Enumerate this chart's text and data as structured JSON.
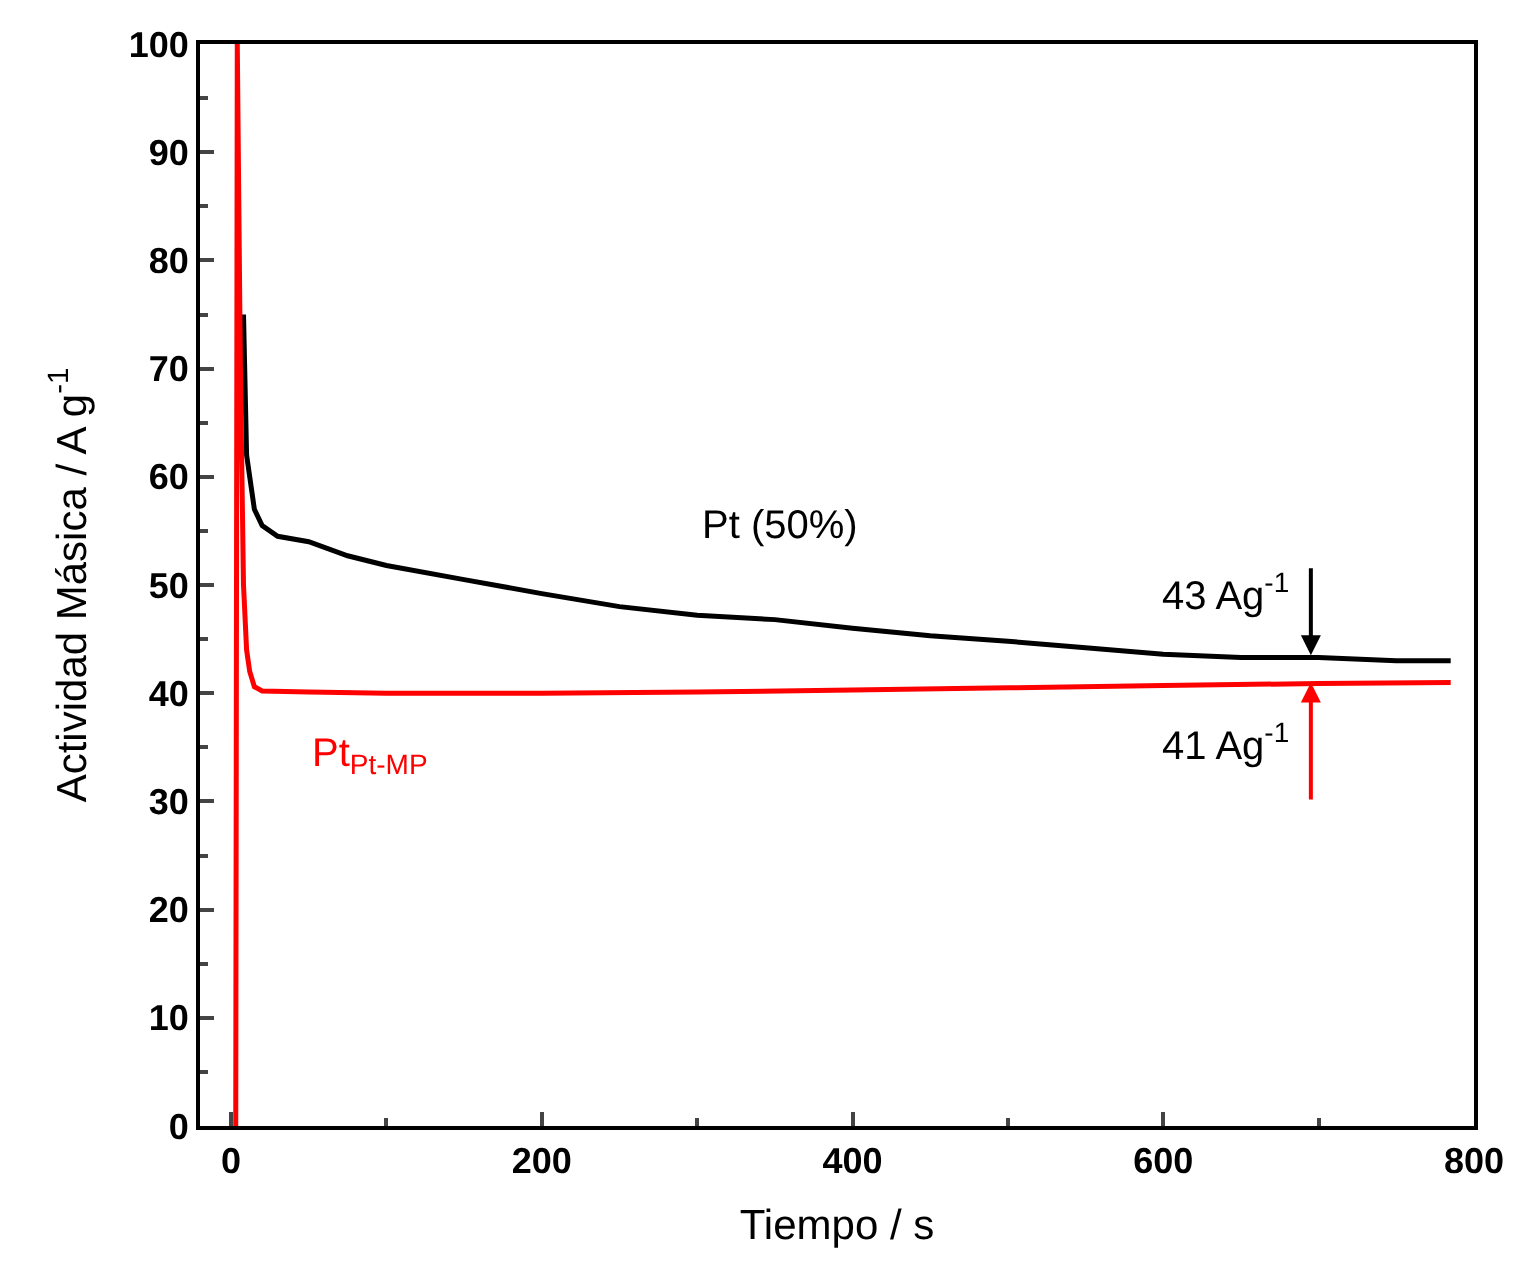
{
  "chart_data": {
    "type": "line",
    "xlabel": "Tiempo / s",
    "ylabel": "Actividad Másica / A g$^{-1}$",
    "xlim": [
      -20,
      800
    ],
    "xticks": [
      0,
      200,
      400,
      600,
      800
    ],
    "ylim": [
      0,
      100
    ],
    "yticks": [
      0,
      10,
      20,
      30,
      40,
      50,
      60,
      70,
      80,
      90,
      100
    ],
    "legend": false,
    "marker": "none",
    "line_style": "solid",
    "series": [
      {
        "name": "Pt (50%)",
        "color": "#000000",
        "x": [
          8,
          10,
          15,
          20,
          30,
          50,
          75,
          100,
          150,
          200,
          250,
          300,
          350,
          400,
          450,
          500,
          550,
          600,
          650,
          700,
          750,
          785
        ],
        "values": [
          75,
          62,
          57,
          55.5,
          54.5,
          54,
          52.7,
          51.8,
          50.5,
          49.2,
          48,
          47.2,
          46.8,
          46,
          45.3,
          44.8,
          44.2,
          43.6,
          43.3,
          43.3,
          43,
          43
        ]
      },
      {
        "name": "Pt$_{Pt-MP}$",
        "color": "#ff0000",
        "x": [
          3,
          4,
          6,
          8,
          10,
          12,
          15,
          20,
          50,
          100,
          200,
          300,
          400,
          500,
          600,
          700,
          785
        ],
        "values": [
          0,
          100,
          70,
          50,
          44,
          42,
          40.6,
          40.2,
          40.1,
          40,
          40,
          40.1,
          40.3,
          40.5,
          40.7,
          40.9,
          41
        ]
      }
    ],
    "annotations": [
      {
        "text": "43 Ag$^{-1}$",
        "x": 695,
        "y": 43.5
      },
      {
        "text": "41 Ag$^{-1}$",
        "x": 695,
        "y": 41
      }
    ]
  }
}
